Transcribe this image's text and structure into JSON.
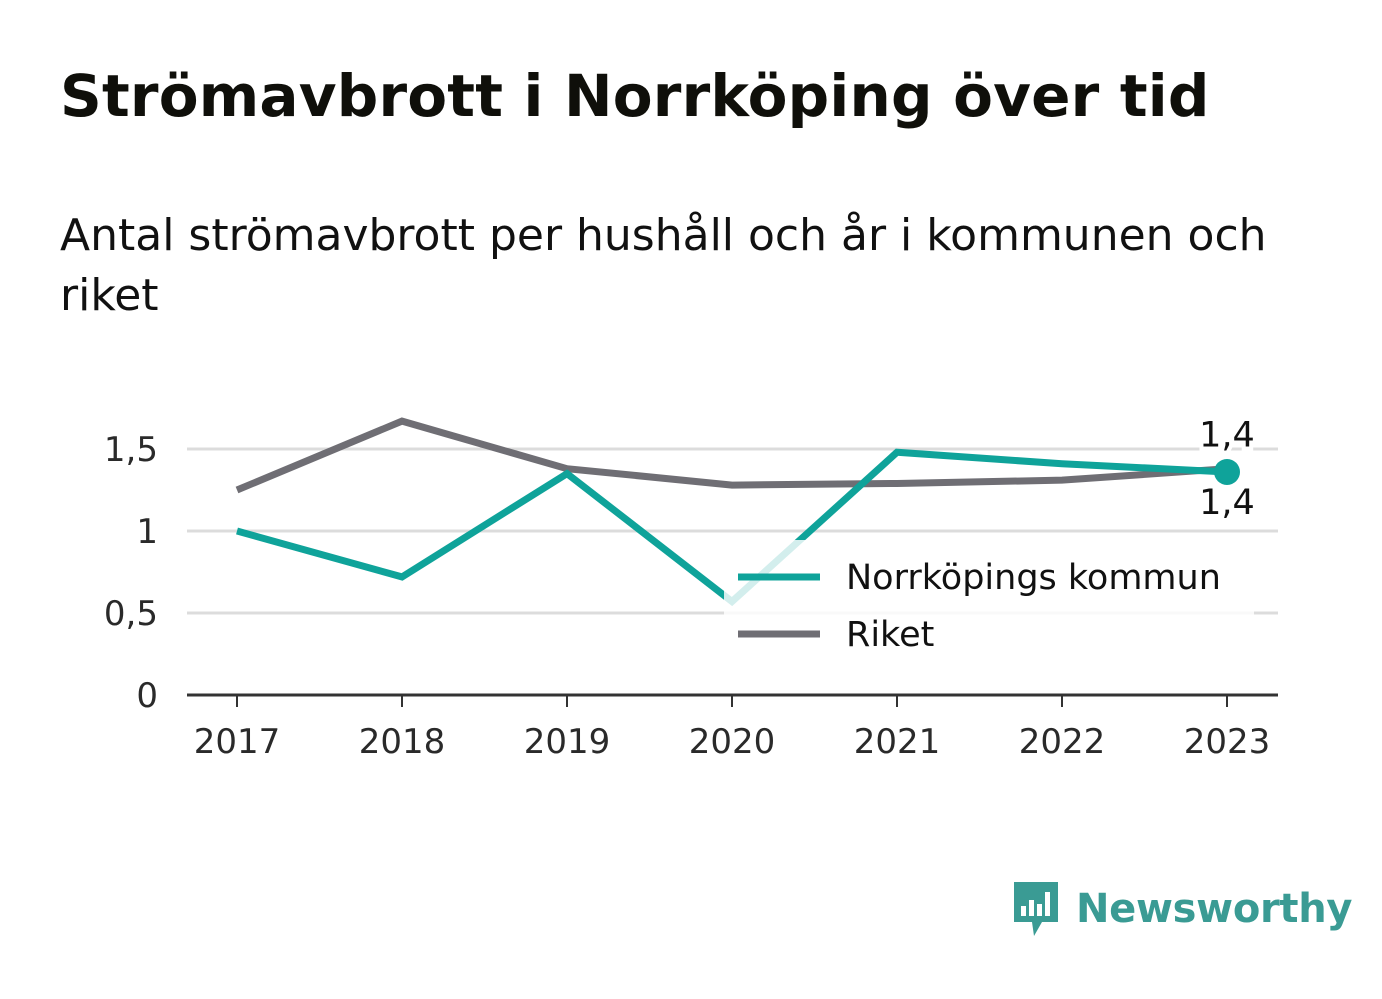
{
  "title": "Strömavbrott i Norrköping över tid",
  "subtitle": "Antal strömavbrott per hushåll och år i kommunen och riket",
  "brand": {
    "name": "Newsworthy",
    "icon": "newsworthy-logo-icon",
    "color": "#3a9b94"
  },
  "chart_data": {
    "type": "line",
    "x": [
      "2017",
      "2018",
      "2019",
      "2020",
      "2021",
      "2022",
      "2023"
    ],
    "series": [
      {
        "name": "Norrköpings kommun",
        "color": "#0fa39a",
        "values": [
          1.0,
          0.72,
          1.35,
          0.57,
          1.48,
          1.41,
          1.36
        ]
      },
      {
        "name": "Riket",
        "color": "#6f6e74",
        "values": [
          1.25,
          1.67,
          1.38,
          1.28,
          1.29,
          1.31,
          1.38
        ]
      }
    ],
    "yticks": [
      "0",
      "0,5",
      "1",
      "1,5"
    ],
    "ylim": [
      0,
      1.8
    ],
    "grid": true,
    "legend_position": "inside-bottom-right",
    "end_labels": [
      {
        "series": "Riket",
        "text": "1,4"
      },
      {
        "series": "Norrköpings kommun",
        "text": "1,4"
      }
    ]
  }
}
